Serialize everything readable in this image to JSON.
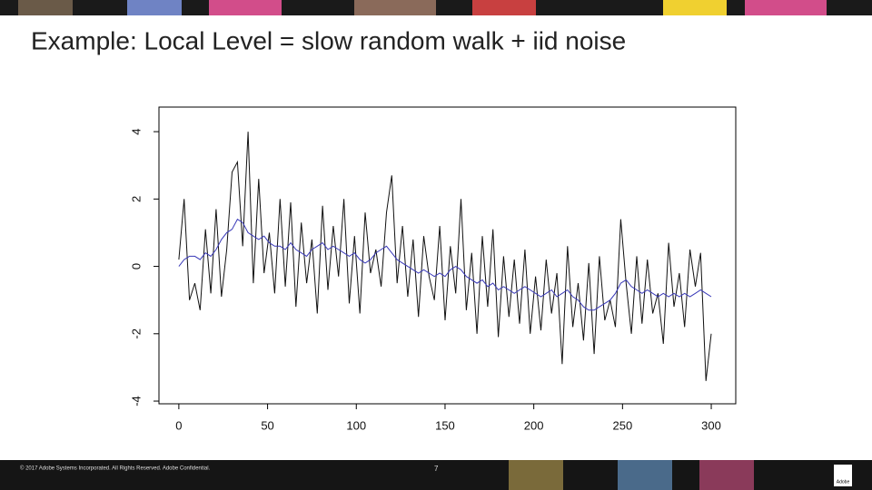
{
  "slide_title": "Example: Local Level = slow random walk + iid noise",
  "footer": {
    "copyright": "© 2017 Adobe Systems Incorporated.  All Rights Reserved.  Adobe Confidential.",
    "page_number": "7",
    "logo": "Adobe"
  },
  "chart_data": {
    "type": "line",
    "x": [
      0,
      3,
      6,
      9,
      12,
      15,
      18,
      21,
      24,
      27,
      30,
      33,
      36,
      39,
      42,
      45,
      48,
      51,
      54,
      57,
      60,
      63,
      66,
      69,
      72,
      75,
      78,
      81,
      84,
      87,
      90,
      93,
      96,
      99,
      102,
      105,
      108,
      111,
      114,
      117,
      120,
      123,
      126,
      129,
      132,
      135,
      138,
      141,
      144,
      147,
      150,
      153,
      156,
      159,
      162,
      165,
      168,
      171,
      174,
      177,
      180,
      183,
      186,
      189,
      192,
      195,
      198,
      201,
      204,
      207,
      210,
      213,
      216,
      219,
      222,
      225,
      228,
      231,
      234,
      237,
      240,
      243,
      246,
      249,
      252,
      255,
      258,
      261,
      264,
      267,
      270,
      273,
      276,
      279,
      282,
      285,
      288,
      291,
      294,
      297,
      300
    ],
    "series": [
      {
        "color": "#111111",
        "values": [
          0.2,
          2.0,
          -1.0,
          -0.5,
          -1.3,
          1.1,
          -0.8,
          1.7,
          -0.9,
          0.5,
          2.8,
          3.1,
          0.6,
          4.0,
          -0.5,
          2.6,
          -0.2,
          1.0,
          -0.8,
          2.0,
          -0.6,
          1.9,
          -1.2,
          1.3,
          -0.5,
          0.8,
          -1.4,
          1.8,
          -0.7,
          1.2,
          -0.3,
          2.0,
          -1.1,
          0.9,
          -1.4,
          1.6,
          -0.2,
          0.5,
          -0.6,
          1.6,
          2.7,
          -0.5,
          1.2,
          -0.9,
          0.8,
          -1.5,
          0.9,
          -0.3,
          -1.0,
          1.2,
          -1.6,
          0.6,
          -0.8,
          2.0,
          -1.3,
          0.4,
          -2.0,
          0.9,
          -1.2,
          1.1,
          -2.1,
          0.3,
          -1.5,
          0.2,
          -1.7,
          0.5,
          -2.0,
          -0.3,
          -1.9,
          0.2,
          -1.4,
          -0.2,
          -2.9,
          0.6,
          -1.8,
          -0.5,
          -2.2,
          0.1,
          -2.6,
          0.3,
          -1.6,
          -1.0,
          -1.8,
          1.4,
          -0.5,
          -2.0,
          0.3,
          -1.7,
          0.2,
          -1.4,
          -0.8,
          -2.3,
          0.7,
          -1.2,
          -0.2,
          -1.8,
          0.5,
          -0.6,
          0.4,
          -3.4,
          -2.0
        ]
      },
      {
        "color": "#3838b8",
        "values": [
          0.0,
          0.2,
          0.3,
          0.3,
          0.2,
          0.4,
          0.3,
          0.5,
          0.8,
          1.0,
          1.1,
          1.4,
          1.3,
          1.0,
          0.9,
          0.8,
          0.9,
          0.7,
          0.6,
          0.6,
          0.5,
          0.7,
          0.5,
          0.4,
          0.3,
          0.5,
          0.6,
          0.7,
          0.5,
          0.6,
          0.5,
          0.4,
          0.3,
          0.4,
          0.2,
          0.1,
          0.2,
          0.4,
          0.5,
          0.6,
          0.4,
          0.2,
          0.1,
          0.0,
          -0.1,
          -0.2,
          -0.1,
          -0.2,
          -0.3,
          -0.2,
          -0.3,
          -0.1,
          0.0,
          -0.1,
          -0.3,
          -0.4,
          -0.5,
          -0.4,
          -0.6,
          -0.5,
          -0.7,
          -0.6,
          -0.7,
          -0.8,
          -0.7,
          -0.6,
          -0.7,
          -0.8,
          -0.9,
          -0.8,
          -0.7,
          -0.9,
          -0.8,
          -0.7,
          -0.9,
          -1.0,
          -1.2,
          -1.3,
          -1.3,
          -1.2,
          -1.1,
          -1.0,
          -0.8,
          -0.5,
          -0.4,
          -0.6,
          -0.7,
          -0.8,
          -0.7,
          -0.8,
          -0.9,
          -0.8,
          -0.9,
          -0.8,
          -0.9,
          -0.8,
          -0.9,
          -0.8,
          -0.7,
          -0.8,
          -0.9
        ]
      }
    ],
    "xlim": [
      -11.2,
      313.8
    ],
    "ylim": [
      -4.08,
      4.73
    ],
    "xticks": [
      0,
      50,
      100,
      150,
      200,
      250,
      300
    ],
    "yticks": [
      -4,
      -2,
      0,
      2,
      4
    ]
  }
}
